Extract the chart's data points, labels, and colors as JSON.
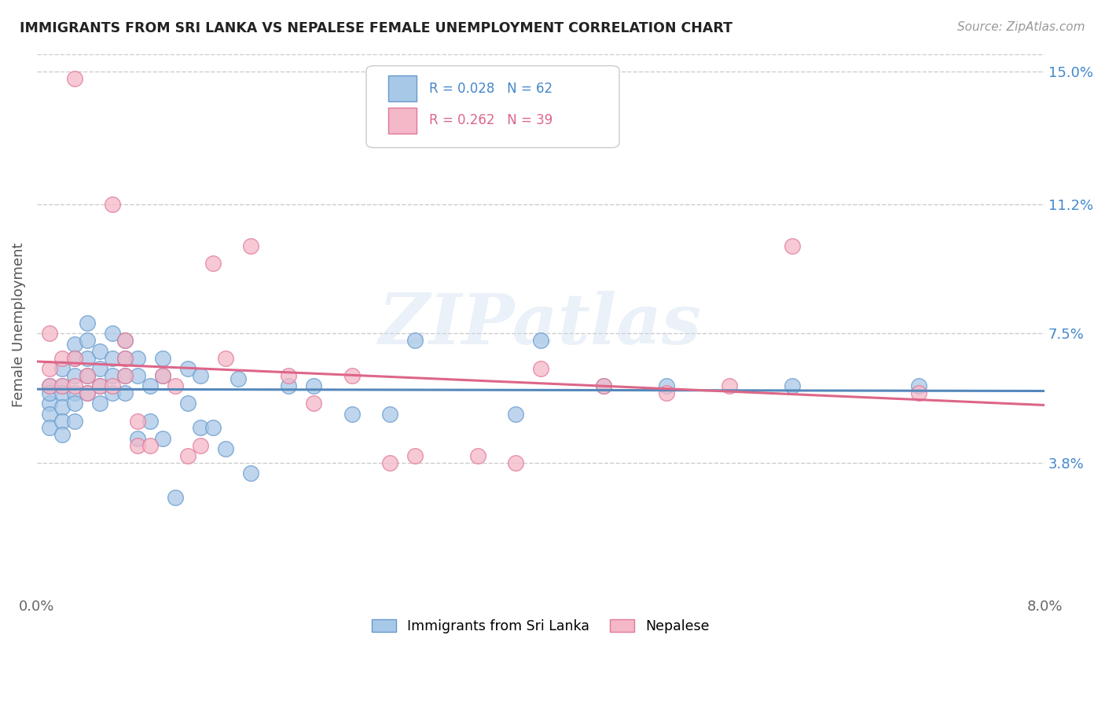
{
  "title": "IMMIGRANTS FROM SRI LANKA VS NEPALESE FEMALE UNEMPLOYMENT CORRELATION CHART",
  "source": "Source: ZipAtlas.com",
  "ylabel": "Female Unemployment",
  "yticks_pct": [
    3.8,
    7.5,
    11.2,
    15.0
  ],
  "ytick_labels": [
    "3.8%",
    "7.5%",
    "11.2%",
    "15.0%"
  ],
  "xmin": 0.0,
  "xmax": 0.08,
  "ymin": 0.0,
  "ymax": 0.155,
  "legend_r1": "R = 0.028",
  "legend_n1": "N = 62",
  "legend_r2": "R = 0.262",
  "legend_n2": "N = 39",
  "color_blue": "#a8c8e8",
  "color_pink": "#f4b8c8",
  "color_blue_edge": "#6699cc",
  "color_pink_edge": "#e07898",
  "color_blue_line": "#5588bb",
  "color_pink_line": "#dd6688",
  "color_blue_text": "#4488cc",
  "color_pink_text": "#dd6688",
  "watermark": "ZIPatlas",
  "background_color": "#ffffff",
  "grid_color": "#cccccc",
  "sri_lanka_x": [
    0.001,
    0.001,
    0.001,
    0.001,
    0.001,
    0.002,
    0.002,
    0.002,
    0.002,
    0.002,
    0.002,
    0.003,
    0.003,
    0.003,
    0.003,
    0.003,
    0.003,
    0.004,
    0.004,
    0.004,
    0.004,
    0.004,
    0.005,
    0.005,
    0.005,
    0.005,
    0.006,
    0.006,
    0.006,
    0.006,
    0.007,
    0.007,
    0.007,
    0.007,
    0.008,
    0.008,
    0.008,
    0.009,
    0.009,
    0.01,
    0.01,
    0.01,
    0.011,
    0.012,
    0.012,
    0.013,
    0.013,
    0.014,
    0.015,
    0.016,
    0.017,
    0.02,
    0.022,
    0.025,
    0.028,
    0.03,
    0.038,
    0.04,
    0.045,
    0.05,
    0.06,
    0.07
  ],
  "sri_lanka_y": [
    0.06,
    0.055,
    0.058,
    0.052,
    0.048,
    0.065,
    0.06,
    0.058,
    0.054,
    0.05,
    0.046,
    0.072,
    0.068,
    0.063,
    0.058,
    0.055,
    0.05,
    0.078,
    0.073,
    0.068,
    0.063,
    0.058,
    0.07,
    0.065,
    0.06,
    0.055,
    0.075,
    0.068,
    0.063,
    0.058,
    0.073,
    0.068,
    0.063,
    0.058,
    0.068,
    0.063,
    0.045,
    0.06,
    0.05,
    0.068,
    0.063,
    0.045,
    0.028,
    0.065,
    0.055,
    0.063,
    0.048,
    0.048,
    0.042,
    0.062,
    0.035,
    0.06,
    0.06,
    0.052,
    0.052,
    0.073,
    0.052,
    0.073,
    0.06,
    0.06,
    0.06,
    0.06
  ],
  "nepalese_x": [
    0.001,
    0.001,
    0.001,
    0.002,
    0.002,
    0.003,
    0.003,
    0.003,
    0.004,
    0.004,
    0.005,
    0.006,
    0.006,
    0.007,
    0.007,
    0.007,
    0.008,
    0.008,
    0.009,
    0.01,
    0.011,
    0.012,
    0.013,
    0.014,
    0.015,
    0.017,
    0.02,
    0.022,
    0.025,
    0.028,
    0.03,
    0.035,
    0.038,
    0.04,
    0.045,
    0.05,
    0.055,
    0.06,
    0.07
  ],
  "nepalese_y": [
    0.065,
    0.06,
    0.075,
    0.068,
    0.06,
    0.148,
    0.068,
    0.06,
    0.063,
    0.058,
    0.06,
    0.112,
    0.06,
    0.073,
    0.068,
    0.063,
    0.05,
    0.043,
    0.043,
    0.063,
    0.06,
    0.04,
    0.043,
    0.095,
    0.068,
    0.1,
    0.063,
    0.055,
    0.063,
    0.038,
    0.04,
    0.04,
    0.038,
    0.065,
    0.06,
    0.058,
    0.06,
    0.1,
    0.058
  ]
}
